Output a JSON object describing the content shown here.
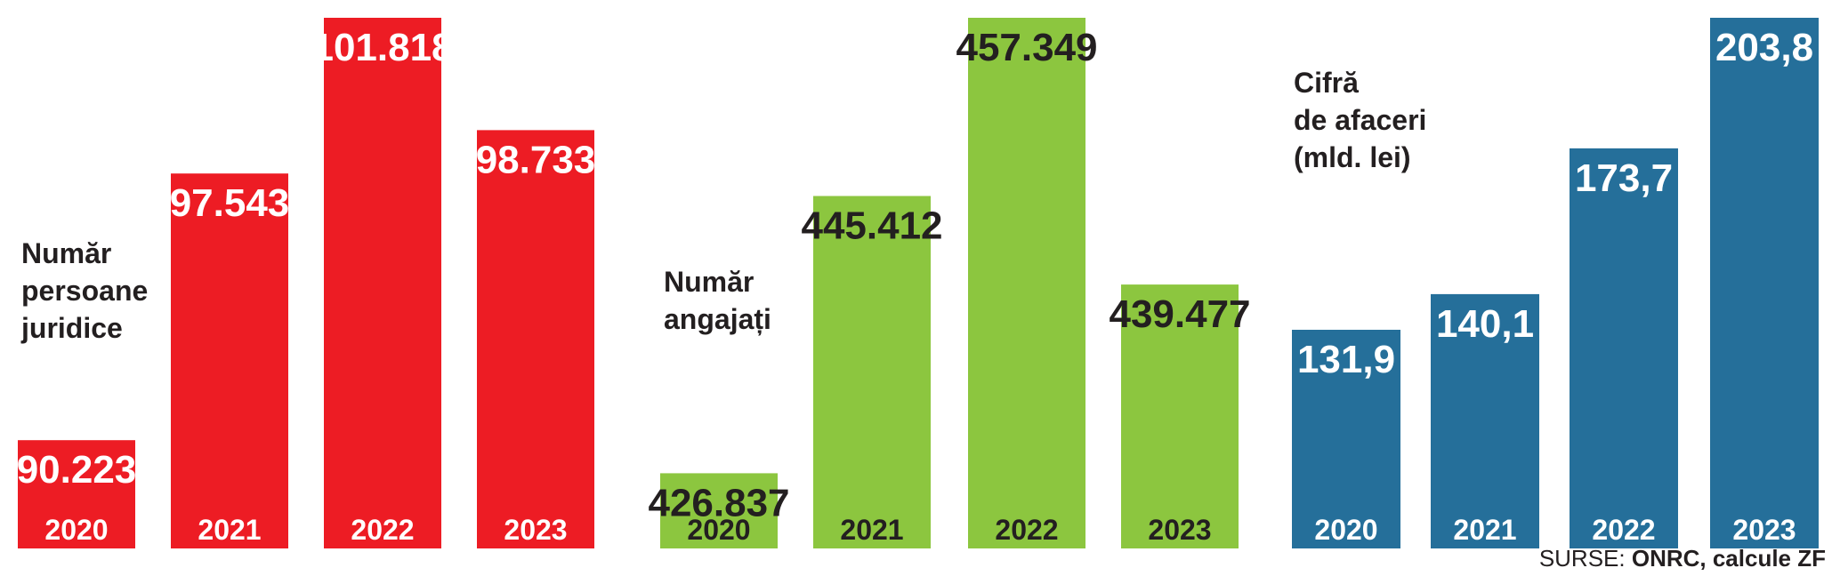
{
  "chart_data": [
    {
      "type": "bar",
      "title_lines": [
        "Număr",
        "persoane",
        "juridice"
      ],
      "color": "#ed1c24",
      "value_color": "#ffffff",
      "year_color": "#ffffff",
      "categories": [
        "2020",
        "2021",
        "2022",
        "2023"
      ],
      "values": [
        90223,
        97543,
        101818,
        98733
      ],
      "value_labels": [
        "90.223",
        "97.543",
        "101.818",
        "98.733"
      ],
      "ylim": [
        87250,
        101818
      ]
    },
    {
      "type": "bar",
      "title_lines": [
        "Număr",
        "angajați"
      ],
      "color": "#8cc63f",
      "value_color": "#231f20",
      "year_color": "#231f20",
      "categories": [
        "2020",
        "2021",
        "2022",
        "2023"
      ],
      "values": [
        426837,
        445412,
        457349,
        439477
      ],
      "value_labels": [
        "426.837",
        "445.412",
        "457.349",
        "439.477"
      ],
      "ylim": [
        421800,
        457349
      ]
    },
    {
      "type": "bar",
      "title_lines": [
        "Cifră",
        "de afaceri",
        "(mld. lei)"
      ],
      "color": "#256f9a",
      "value_color": "#ffffff",
      "year_color": "#ffffff",
      "categories": [
        "2020",
        "2021",
        "2022",
        "2023"
      ],
      "values": [
        131.9,
        140.1,
        173.7,
        203.8
      ],
      "value_labels": [
        "131,9",
        "140,1",
        "173,7",
        "203,8"
      ],
      "ylim": [
        81.5,
        203.8
      ]
    }
  ],
  "source": {
    "prefix": "SURSE: ",
    "text": "ONRC, calcule ZF"
  }
}
